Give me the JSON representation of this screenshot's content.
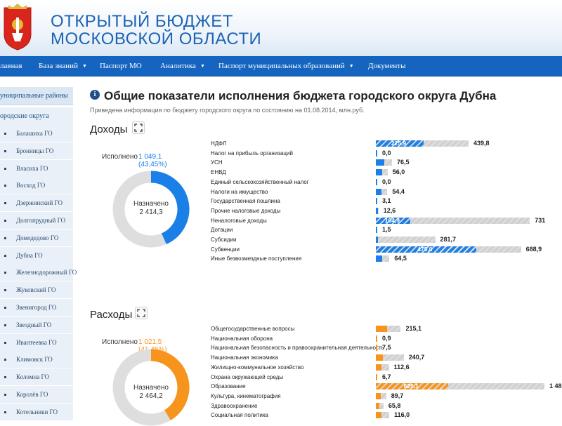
{
  "header": {
    "title_line1": "ОТКРЫТЫЙ БЮДЖЕТ",
    "title_line2": "МОСКОВСКОЙ ОБЛАСТИ"
  },
  "nav": {
    "items": [
      {
        "label": "лавная",
        "dropdown": false
      },
      {
        "label": "База знаний",
        "dropdown": true
      },
      {
        "label": "Паспорт МО",
        "dropdown": false
      },
      {
        "label": "Аналитика",
        "dropdown": true
      },
      {
        "label": "Паспорт муниципальных образований",
        "dropdown": true
      },
      {
        "label": "Документы",
        "dropdown": false
      }
    ]
  },
  "sidebar": {
    "section1": "униципальные районы",
    "section2": "ородские округа",
    "items": [
      "Балашиха ГО",
      "Бронницы ГО",
      "Власиха ГО",
      "Восход ГО",
      "Дзержинский ГО",
      "Долгопрудный ГО",
      "Домодедово ГО",
      "Дубна ГО",
      "Железнодорожный ГО",
      "Жуковский ГО",
      "Звенигород ГО",
      "Звездный ГО",
      "Ивантеевка ГО",
      "Климовск ГО",
      "Коломна ГО",
      "Королёв ГО",
      "Котельники ГО"
    ]
  },
  "page": {
    "title": "Общие показатели исполнения бюджета городского округа Дубна",
    "subtitle": "Приведена информация по бюджету городского округа по состоянию на 01.08.2014, млн.руб."
  },
  "income": {
    "title": "Доходы",
    "executed_label": "Исполнено",
    "executed_value": "1 049,1",
    "executed_pct": "(43,45%)",
    "executed_fraction": 0.4345,
    "planned_label": "Назначено",
    "planned_value": "2 414,3",
    "color": "#1a7fe6",
    "rows": [
      {
        "name": "НДФЛ",
        "executed": "225,9",
        "planned": "439,8",
        "e": 225.9,
        "p": 439.8
      },
      {
        "name": "Налог на прибыль организаций",
        "executed": "",
        "planned": "0,0",
        "e": 0,
        "p": 0
      },
      {
        "name": "УСН",
        "executed": "",
        "planned": "76,5",
        "e": 40,
        "p": 76.5
      },
      {
        "name": "ЕНВД",
        "executed": "",
        "planned": "56,0",
        "e": 30,
        "p": 56.0
      },
      {
        "name": "Единый сельскохозяйственный налог",
        "executed": "",
        "planned": "0,0",
        "e": 0,
        "p": 0
      },
      {
        "name": "Налоги на имущество",
        "executed": "",
        "planned": "54,4",
        "e": 25,
        "p": 54.4
      },
      {
        "name": "Государственная пошлина",
        "executed": "",
        "planned": "3,1",
        "e": 1.8,
        "p": 3.1
      },
      {
        "name": "Прочие налоговые доходы",
        "executed": "",
        "planned": "12,6",
        "e": 6,
        "p": 12.6
      },
      {
        "name": "Неналоговые доходы",
        "executed": "164,9",
        "planned": "731",
        "e": 164.9,
        "p": 731
      },
      {
        "name": "Дотации",
        "executed": "",
        "planned": "1,5",
        "e": 1.5,
        "p": 1.5
      },
      {
        "name": "Субсидии",
        "executed": "",
        "planned": "281,7",
        "e": 10,
        "p": 281.7
      },
      {
        "name": "Субвенции",
        "executed": "475,0",
        "planned": "688,9",
        "e": 475.0,
        "p": 688.9
      },
      {
        "name": "Иные безвозмездные поступления",
        "executed": "",
        "planned": "64,5",
        "e": 30,
        "p": 64.5
      }
    ]
  },
  "expense": {
    "title": "Расходы",
    "executed_label": "Исполнено",
    "executed_value": "1 021,5",
    "executed_pct": "(41,45%)",
    "executed_fraction": 0.4145,
    "planned_label": "Назначено",
    "planned_value": "2 464,2",
    "color": "#f7941d",
    "rows": [
      {
        "name": "Общегосударственные вопросы",
        "executed": "",
        "planned": "215,1",
        "e": 95,
        "p": 215.1
      },
      {
        "name": "Национальная оборона",
        "executed": "",
        "planned": "0,9",
        "e": 0.5,
        "p": 0.9
      },
      {
        "name": "Национальная безопасность и правоохранительная деятельность",
        "executed": "",
        "planned": "7,5",
        "e": 3,
        "p": 7.5
      },
      {
        "name": "Национальная экономика",
        "executed": "",
        "planned": "240,7",
        "e": 60,
        "p": 240.7
      },
      {
        "name": "Жилищно-коммунальное хозяйство",
        "executed": "",
        "planned": "112,6",
        "e": 50,
        "p": 112.6
      },
      {
        "name": "Охрана окружающей среды",
        "executed": "",
        "planned": "6,7",
        "e": 3,
        "p": 6.7
      },
      {
        "name": "Образование",
        "executed": "625,1",
        "planned": "1 48",
        "e": 625.1,
        "p": 1480
      },
      {
        "name": "Культура, кинематография",
        "executed": "",
        "planned": "89,7",
        "e": 40,
        "p": 89.7
      },
      {
        "name": "Здравоохранение",
        "executed": "",
        "planned": "65,8",
        "e": 30,
        "p": 65.8
      },
      {
        "name": "Социальная политика",
        "executed": "",
        "planned": "116,0",
        "e": 50,
        "p": 116.0
      }
    ]
  }
}
